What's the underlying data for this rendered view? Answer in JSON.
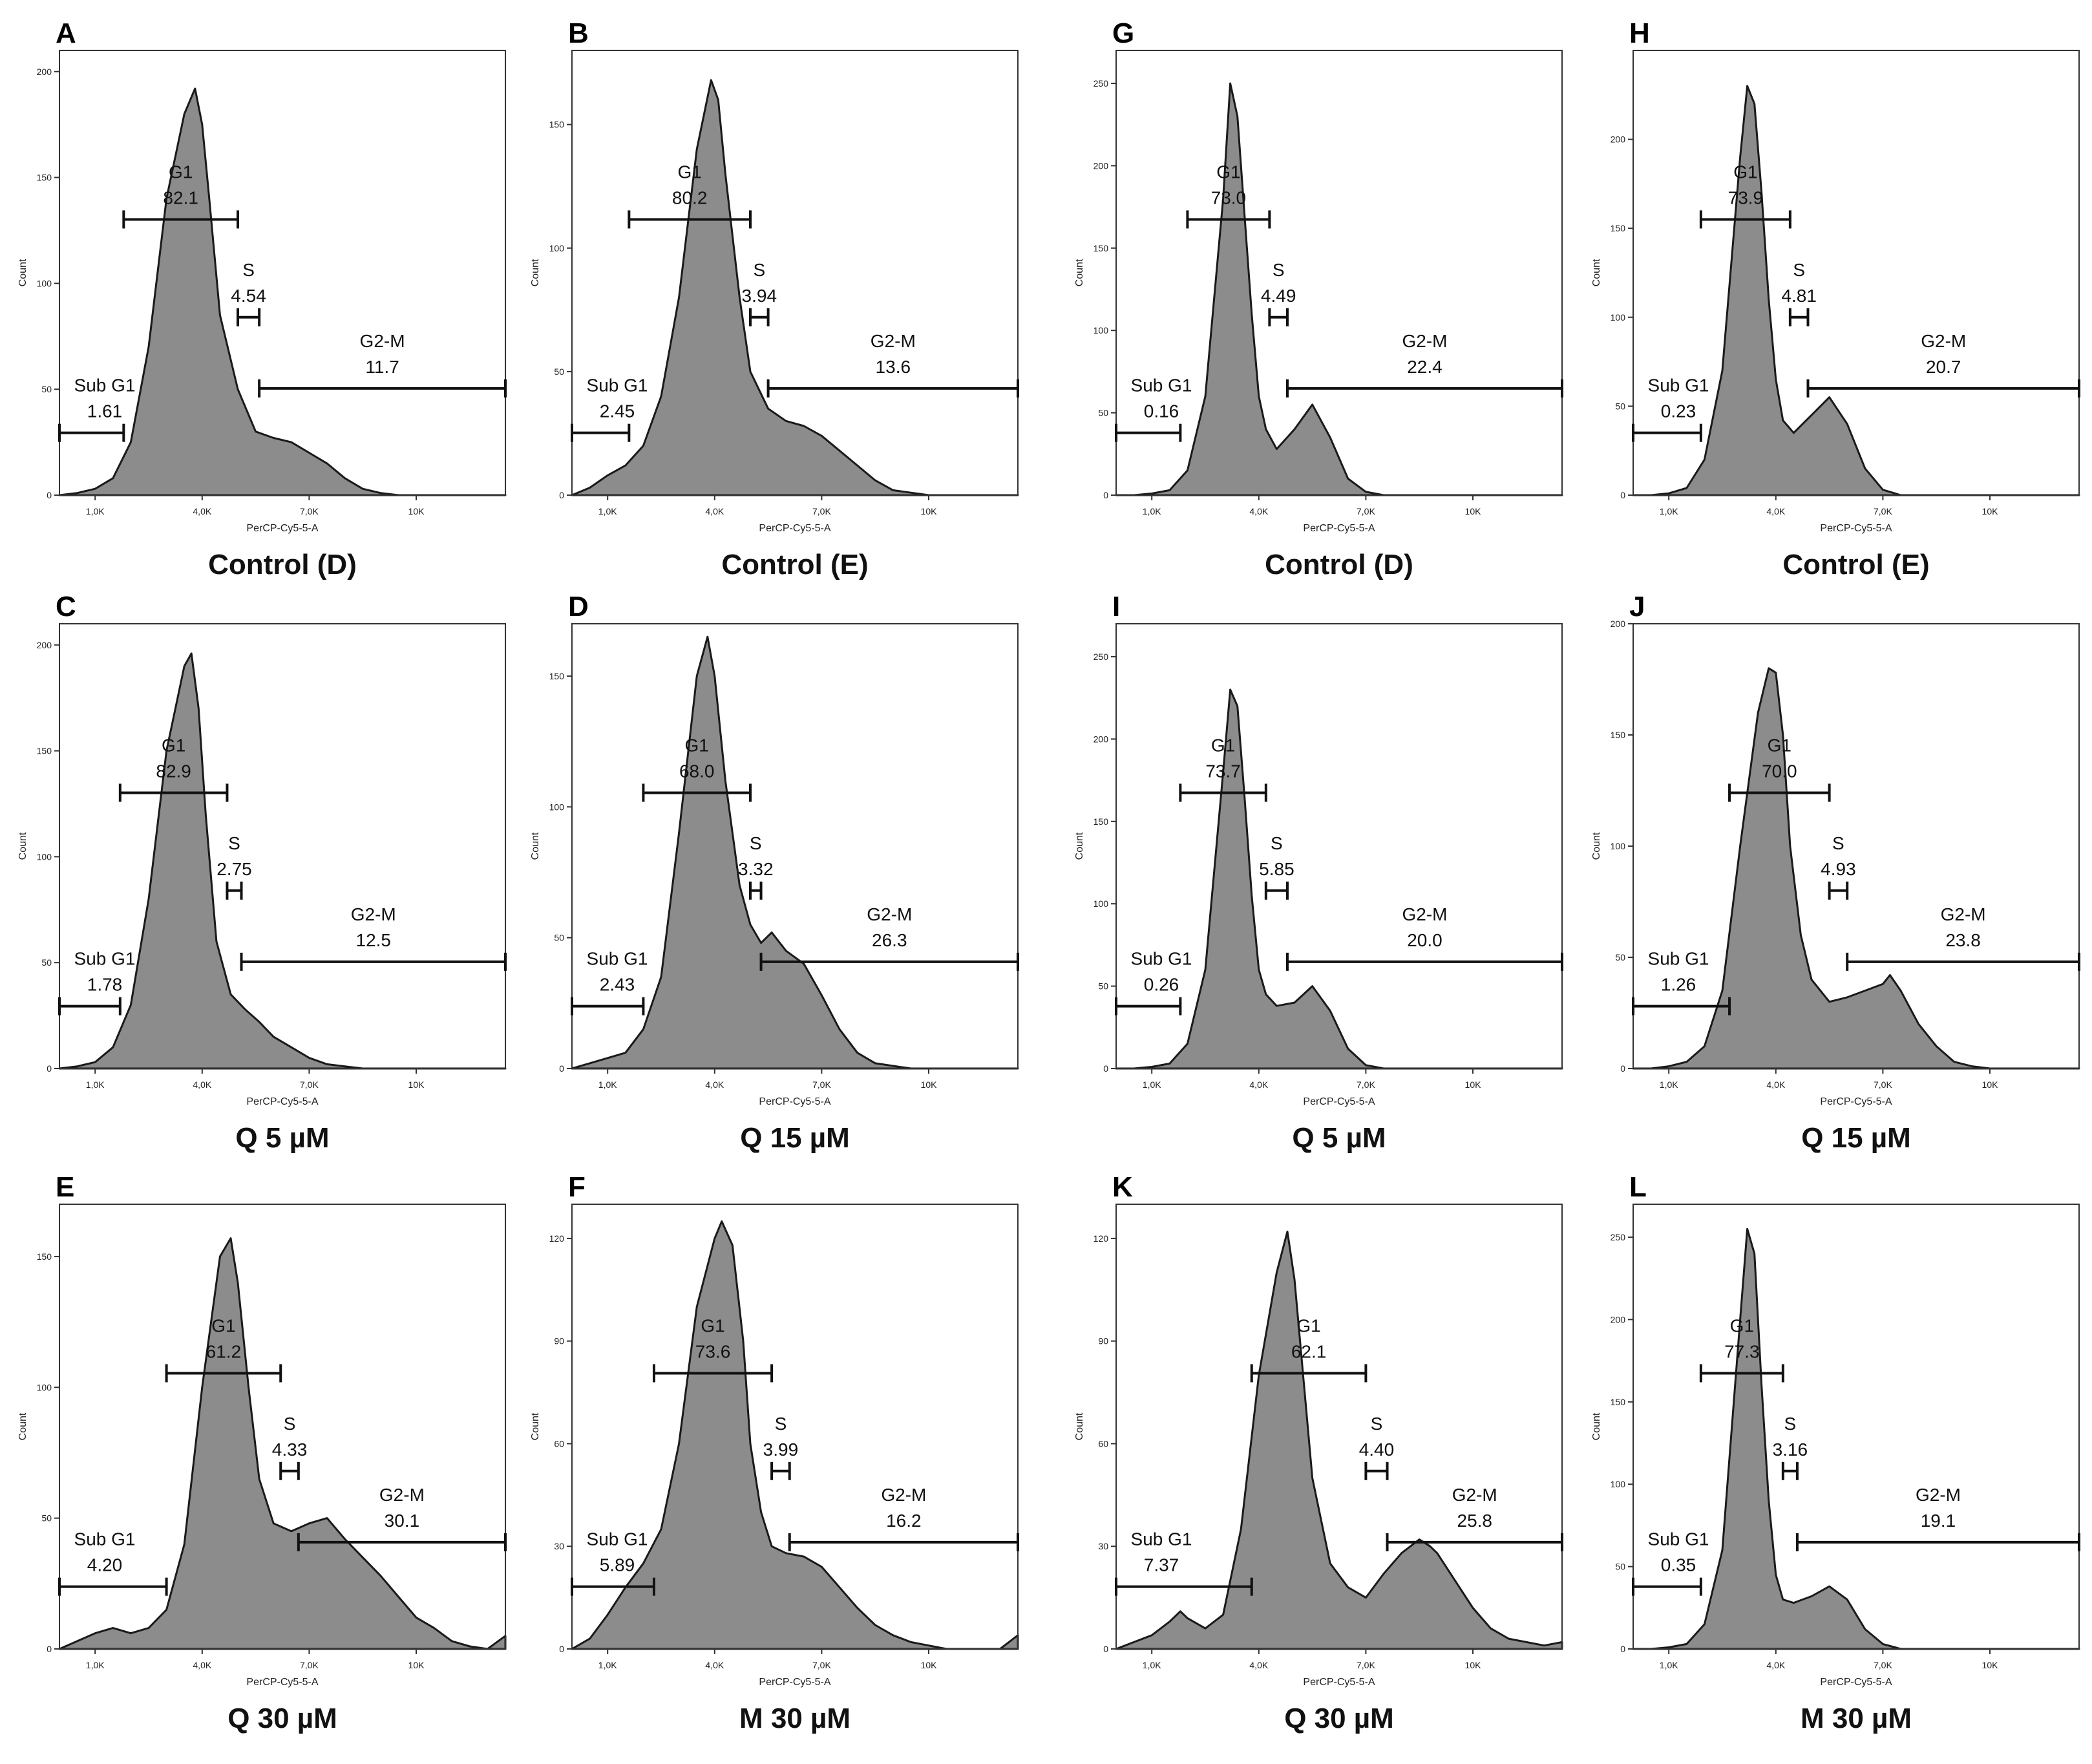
{
  "figure": {
    "x_axis_label": "PerCP-Cy5-5-A",
    "y_axis_label": "Count",
    "x_tick_labels": [
      "1,0K",
      "4,0K",
      "7,0K",
      "10K"
    ]
  },
  "chart_data": [
    {
      "type": "histogram",
      "letter": "A",
      "title": "Control (D)",
      "ylim": [
        0,
        210
      ],
      "yticks": [
        0,
        50,
        100,
        150,
        200
      ],
      "x": [
        0.0,
        0.5,
        1.0,
        1.5,
        2.0,
        2.5,
        3.0,
        3.5,
        3.8,
        4.0,
        4.2,
        4.5,
        5.0,
        5.5,
        6.0,
        6.5,
        7.0,
        7.5,
        8.0,
        8.5,
        9.0,
        9.5,
        10.0,
        10.5,
        11.0,
        11.5,
        12.0,
        12.5
      ],
      "counts": [
        0,
        1,
        3,
        8,
        25,
        70,
        140,
        180,
        192,
        175,
        140,
        85,
        50,
        30,
        27,
        25,
        20,
        15,
        8,
        3,
        1,
        0,
        0,
        0,
        0,
        0,
        0,
        0
      ],
      "gates": [
        {
          "name": "Sub G1",
          "value": "1.61",
          "range": [
            0.0,
            1.8
          ]
        },
        {
          "name": "G1",
          "value": "82.1",
          "range": [
            1.8,
            5.0
          ]
        },
        {
          "name": "S",
          "value": "4.54",
          "range": [
            5.0,
            5.6
          ]
        },
        {
          "name": "G2-M",
          "value": "11.7",
          "range": [
            5.6,
            12.5
          ]
        }
      ]
    },
    {
      "type": "histogram",
      "letter": "B",
      "title": "Control (E)",
      "ylim": [
        0,
        180
      ],
      "yticks": [
        0,
        50,
        100,
        150
      ],
      "x": [
        0.0,
        0.5,
        1.0,
        1.5,
        2.0,
        2.5,
        3.0,
        3.5,
        3.9,
        4.1,
        4.3,
        4.7,
        5.0,
        5.5,
        6.0,
        6.5,
        7.0,
        7.5,
        8.0,
        8.5,
        9.0,
        9.5,
        10.0,
        10.5,
        11.0,
        11.5,
        12.0,
        12.5
      ],
      "counts": [
        0,
        3,
        8,
        12,
        20,
        40,
        80,
        140,
        168,
        160,
        130,
        80,
        50,
        35,
        30,
        28,
        24,
        18,
        12,
        6,
        2,
        1,
        0,
        0,
        0,
        0,
        0,
        0
      ],
      "gates": [
        {
          "name": "Sub G1",
          "value": "2.45",
          "range": [
            0.0,
            1.6
          ]
        },
        {
          "name": "G1",
          "value": "80.2",
          "range": [
            1.6,
            5.0
          ]
        },
        {
          "name": "S",
          "value": "3.94",
          "range": [
            5.0,
            5.5
          ]
        },
        {
          "name": "G2-M",
          "value": "13.6",
          "range": [
            5.5,
            12.5
          ]
        }
      ]
    },
    {
      "type": "histogram",
      "letter": "G",
      "title": "Control (D)",
      "ylim": [
        0,
        270
      ],
      "yticks": [
        0,
        50,
        100,
        150,
        200,
        250
      ],
      "x": [
        0.0,
        0.5,
        1.0,
        1.5,
        2.0,
        2.5,
        3.0,
        3.2,
        3.4,
        3.6,
        3.8,
        4.0,
        4.2,
        4.5,
        5.0,
        5.5,
        6.0,
        6.5,
        7.0,
        7.5,
        8.0,
        8.5,
        9.0,
        10.0,
        11.0,
        12.0,
        12.5
      ],
      "counts": [
        0,
        0,
        1,
        3,
        15,
        60,
        180,
        250,
        230,
        170,
        110,
        60,
        40,
        28,
        40,
        55,
        35,
        10,
        2,
        0,
        0,
        0,
        0,
        0,
        0,
        0,
        0
      ],
      "gates": [
        {
          "name": "Sub G1",
          "value": "0.16",
          "range": [
            0.0,
            1.8
          ]
        },
        {
          "name": "G1",
          "value": "73.0",
          "range": [
            2.0,
            4.3
          ]
        },
        {
          "name": "S",
          "value": "4.49",
          "range": [
            4.3,
            4.8
          ]
        },
        {
          "name": "G2-M",
          "value": "22.4",
          "range": [
            4.8,
            12.5
          ]
        }
      ]
    },
    {
      "type": "histogram",
      "letter": "H",
      "title": "Control (E)",
      "ylim": [
        0,
        250
      ],
      "yticks": [
        0,
        50,
        100,
        150,
        200
      ],
      "x": [
        0.0,
        0.5,
        1.0,
        1.5,
        2.0,
        2.5,
        3.0,
        3.2,
        3.4,
        3.6,
        3.8,
        4.0,
        4.2,
        4.5,
        5.0,
        5.5,
        6.0,
        6.5,
        7.0,
        7.5,
        8.0,
        8.5,
        9.0,
        10.0,
        11.0,
        12.0,
        12.5
      ],
      "counts": [
        0,
        0,
        1,
        4,
        20,
        70,
        190,
        230,
        220,
        170,
        110,
        65,
        42,
        35,
        45,
        55,
        40,
        15,
        3,
        0,
        0,
        0,
        0,
        0,
        0,
        0,
        0
      ],
      "gates": [
        {
          "name": "Sub G1",
          "value": "0.23",
          "range": [
            0.0,
            1.9
          ]
        },
        {
          "name": "G1",
          "value": "73.9",
          "range": [
            1.9,
            4.4
          ]
        },
        {
          "name": "S",
          "value": "4.81",
          "range": [
            4.4,
            4.9
          ]
        },
        {
          "name": "G2-M",
          "value": "20.7",
          "range": [
            4.9,
            12.5
          ]
        }
      ]
    },
    {
      "type": "histogram",
      "letter": "C",
      "title": "Q 5 µM",
      "ylim": [
        0,
        210
      ],
      "yticks": [
        0,
        50,
        100,
        150,
        200
      ],
      "x": [
        0.0,
        0.5,
        1.0,
        1.5,
        2.0,
        2.5,
        3.0,
        3.5,
        3.7,
        3.9,
        4.1,
        4.4,
        4.8,
        5.2,
        5.6,
        6.0,
        6.5,
        7.0,
        7.5,
        8.0,
        8.5,
        9.0,
        10.0,
        11.0,
        12.0,
        12.5
      ],
      "counts": [
        0,
        1,
        3,
        10,
        30,
        80,
        150,
        190,
        196,
        170,
        120,
        60,
        35,
        28,
        22,
        15,
        10,
        5,
        2,
        1,
        0,
        0,
        0,
        0,
        0,
        0
      ],
      "gates": [
        {
          "name": "Sub G1",
          "value": "1.78",
          "range": [
            0.0,
            1.7
          ]
        },
        {
          "name": "G1",
          "value": "82.9",
          "range": [
            1.7,
            4.7
          ]
        },
        {
          "name": "S",
          "value": "2.75",
          "range": [
            4.7,
            5.1
          ]
        },
        {
          "name": "G2-M",
          "value": "12.5",
          "range": [
            5.1,
            12.5
          ]
        }
      ]
    },
    {
      "type": "histogram",
      "letter": "D",
      "title": "Q 15 µM",
      "ylim": [
        0,
        170
      ],
      "yticks": [
        0,
        50,
        100,
        150
      ],
      "x": [
        0.0,
        0.5,
        1.0,
        1.5,
        2.0,
        2.5,
        3.0,
        3.5,
        3.8,
        4.0,
        4.3,
        4.7,
        5.0,
        5.3,
        5.6,
        6.0,
        6.5,
        7.0,
        7.5,
        8.0,
        8.5,
        9.0,
        9.5,
        10.0,
        11.0,
        12.0,
        12.5
      ],
      "counts": [
        0,
        2,
        4,
        6,
        15,
        35,
        90,
        150,
        165,
        150,
        110,
        70,
        55,
        48,
        52,
        45,
        40,
        28,
        15,
        6,
        2,
        1,
        0,
        0,
        0,
        0,
        0
      ],
      "gates": [
        {
          "name": "Sub G1",
          "value": "2.43",
          "range": [
            0.0,
            2.0
          ]
        },
        {
          "name": "G1",
          "value": "68.0",
          "range": [
            2.0,
            5.0
          ]
        },
        {
          "name": "S",
          "value": "3.32",
          "range": [
            5.0,
            5.3
          ]
        },
        {
          "name": "G2-M",
          "value": "26.3",
          "range": [
            5.3,
            12.5
          ]
        }
      ]
    },
    {
      "type": "histogram",
      "letter": "I",
      "title": "Q 5 µM",
      "ylim": [
        0,
        270
      ],
      "yticks": [
        0,
        50,
        100,
        150,
        200,
        250
      ],
      "x": [
        0.0,
        0.5,
        1.0,
        1.5,
        2.0,
        2.5,
        3.0,
        3.2,
        3.4,
        3.6,
        3.8,
        4.0,
        4.2,
        4.5,
        5.0,
        5.5,
        6.0,
        6.5,
        7.0,
        7.5,
        8.0,
        8.5,
        9.0,
        10.0,
        11.0,
        12.0,
        12.5
      ],
      "counts": [
        0,
        0,
        1,
        3,
        15,
        60,
        180,
        230,
        220,
        165,
        105,
        60,
        45,
        38,
        40,
        50,
        35,
        12,
        2,
        0,
        0,
        0,
        0,
        0,
        0,
        0,
        0
      ],
      "gates": [
        {
          "name": "Sub G1",
          "value": "0.26",
          "range": [
            0.0,
            1.8
          ]
        },
        {
          "name": "G1",
          "value": "73.7",
          "range": [
            1.8,
            4.2
          ]
        },
        {
          "name": "S",
          "value": "5.85",
          "range": [
            4.2,
            4.8
          ]
        },
        {
          "name": "G2-M",
          "value": "20.0",
          "range": [
            4.8,
            12.5
          ]
        }
      ]
    },
    {
      "type": "histogram",
      "letter": "J",
      "title": "Q 15 µM",
      "ylim": [
        0,
        200
      ],
      "yticks": [
        0,
        50,
        100,
        150,
        200
      ],
      "x": [
        0.0,
        0.5,
        1.0,
        1.5,
        2.0,
        2.5,
        3.0,
        3.5,
        3.8,
        4.0,
        4.2,
        4.4,
        4.7,
        5.0,
        5.5,
        6.0,
        6.5,
        7.0,
        7.2,
        7.5,
        8.0,
        8.5,
        9.0,
        9.5,
        10.0,
        11.0,
        12.0,
        12.5
      ],
      "counts": [
        0,
        0,
        1,
        3,
        10,
        35,
        100,
        160,
        180,
        178,
        150,
        100,
        60,
        40,
        30,
        32,
        35,
        38,
        42,
        35,
        20,
        10,
        3,
        1,
        0,
        0,
        0,
        0
      ],
      "gates": [
        {
          "name": "Sub G1",
          "value": "1.26",
          "range": [
            0.0,
            2.7
          ]
        },
        {
          "name": "G1",
          "value": "70.0",
          "range": [
            2.7,
            5.5
          ]
        },
        {
          "name": "S",
          "value": "4.93",
          "range": [
            5.5,
            6.0
          ]
        },
        {
          "name": "G2-M",
          "value": "23.8",
          "range": [
            6.0,
            12.5
          ]
        }
      ]
    },
    {
      "type": "histogram",
      "letter": "E",
      "title": "Q 30 µM",
      "ylim": [
        0,
        170
      ],
      "yticks": [
        0,
        50,
        100,
        150
      ],
      "x": [
        0.0,
        0.5,
        1.0,
        1.5,
        2.0,
        2.5,
        3.0,
        3.5,
        4.0,
        4.5,
        4.8,
        5.0,
        5.3,
        5.6,
        6.0,
        6.5,
        7.0,
        7.5,
        8.0,
        8.5,
        9.0,
        9.5,
        10.0,
        10.5,
        11.0,
        11.5,
        12.0,
        12.5
      ],
      "counts": [
        0,
        3,
        6,
        8,
        6,
        8,
        15,
        40,
        100,
        150,
        157,
        140,
        100,
        65,
        48,
        45,
        48,
        50,
        42,
        35,
        28,
        20,
        12,
        8,
        3,
        1,
        0,
        5
      ],
      "gates": [
        {
          "name": "Sub G1",
          "value": "4.20",
          "range": [
            0.0,
            3.0
          ]
        },
        {
          "name": "G1",
          "value": "61.2",
          "range": [
            3.0,
            6.2
          ]
        },
        {
          "name": "S",
          "value": "4.33",
          "range": [
            6.2,
            6.7
          ]
        },
        {
          "name": "G2-M",
          "value": "30.1",
          "range": [
            6.7,
            12.5
          ]
        }
      ]
    },
    {
      "type": "histogram",
      "letter": "F",
      "title": "M 30 µM",
      "ylim": [
        0,
        130
      ],
      "yticks": [
        0,
        30,
        60,
        90,
        120
      ],
      "x": [
        0.0,
        0.5,
        1.0,
        1.5,
        2.0,
        2.5,
        3.0,
        3.5,
        4.0,
        4.2,
        4.5,
        4.8,
        5.0,
        5.3,
        5.6,
        6.0,
        6.5,
        7.0,
        7.5,
        8.0,
        8.5,
        9.0,
        9.5,
        10.0,
        10.5,
        11.0,
        11.5,
        12.0,
        12.5
      ],
      "counts": [
        0,
        3,
        10,
        18,
        25,
        35,
        60,
        100,
        120,
        125,
        118,
        90,
        60,
        40,
        30,
        28,
        27,
        24,
        18,
        12,
        7,
        4,
        2,
        1,
        0,
        0,
        0,
        0,
        4
      ],
      "gates": [
        {
          "name": "Sub G1",
          "value": "5.89",
          "range": [
            0.0,
            2.3
          ]
        },
        {
          "name": "G1",
          "value": "73.6",
          "range": [
            2.3,
            5.6
          ]
        },
        {
          "name": "S",
          "value": "3.99",
          "range": [
            5.6,
            6.1
          ]
        },
        {
          "name": "G2-M",
          "value": "16.2",
          "range": [
            6.1,
            12.5
          ]
        }
      ]
    },
    {
      "type": "histogram",
      "letter": "K",
      "title": "Q 30 µM",
      "ylim": [
        0,
        130
      ],
      "yticks": [
        0,
        30,
        60,
        90,
        120
      ],
      "x": [
        0.0,
        0.5,
        1.0,
        1.5,
        1.8,
        2.0,
        2.5,
        3.0,
        3.5,
        4.0,
        4.5,
        4.8,
        5.0,
        5.2,
        5.5,
        6.0,
        6.5,
        7.0,
        7.5,
        8.0,
        8.5,
        8.8,
        9.0,
        9.5,
        10.0,
        10.5,
        11.0,
        12.0,
        12.5
      ],
      "counts": [
        0,
        2,
        4,
        8,
        11,
        9,
        6,
        10,
        35,
        80,
        110,
        122,
        108,
        85,
        50,
        25,
        18,
        15,
        22,
        28,
        32,
        30,
        28,
        20,
        12,
        6,
        3,
        1,
        2
      ],
      "gates": [
        {
          "name": "Sub G1",
          "value": "7.37",
          "range": [
            0.0,
            3.8
          ]
        },
        {
          "name": "G1",
          "value": "62.1",
          "range": [
            3.8,
            7.0
          ]
        },
        {
          "name": "S",
          "value": "4.40",
          "range": [
            7.0,
            7.6
          ]
        },
        {
          "name": "G2-M",
          "value": "25.8",
          "range": [
            7.6,
            12.5
          ]
        }
      ]
    },
    {
      "type": "histogram",
      "letter": "L",
      "title": "M 30 µM",
      "ylim": [
        0,
        270
      ],
      "yticks": [
        0,
        50,
        100,
        150,
        200,
        250
      ],
      "x": [
        0.0,
        0.5,
        1.0,
        1.5,
        2.0,
        2.5,
        3.0,
        3.2,
        3.4,
        3.6,
        3.8,
        4.0,
        4.2,
        4.5,
        5.0,
        5.5,
        6.0,
        6.5,
        7.0,
        7.5,
        8.0,
        8.5,
        9.0,
        10.0,
        11.0,
        12.0,
        12.5
      ],
      "counts": [
        0,
        0,
        1,
        3,
        15,
        60,
        200,
        255,
        240,
        160,
        90,
        45,
        30,
        28,
        32,
        38,
        30,
        12,
        3,
        0,
        0,
        0,
        0,
        0,
        0,
        0,
        0
      ],
      "gates": [
        {
          "name": "Sub G1",
          "value": "0.35",
          "range": [
            0.0,
            1.9
          ]
        },
        {
          "name": "G1",
          "value": "77.3",
          "range": [
            1.9,
            4.2
          ]
        },
        {
          "name": "S",
          "value": "3.16",
          "range": [
            4.2,
            4.6
          ]
        },
        {
          "name": "G2-M",
          "value": "19.1",
          "range": [
            4.6,
            12.5
          ]
        }
      ]
    }
  ]
}
